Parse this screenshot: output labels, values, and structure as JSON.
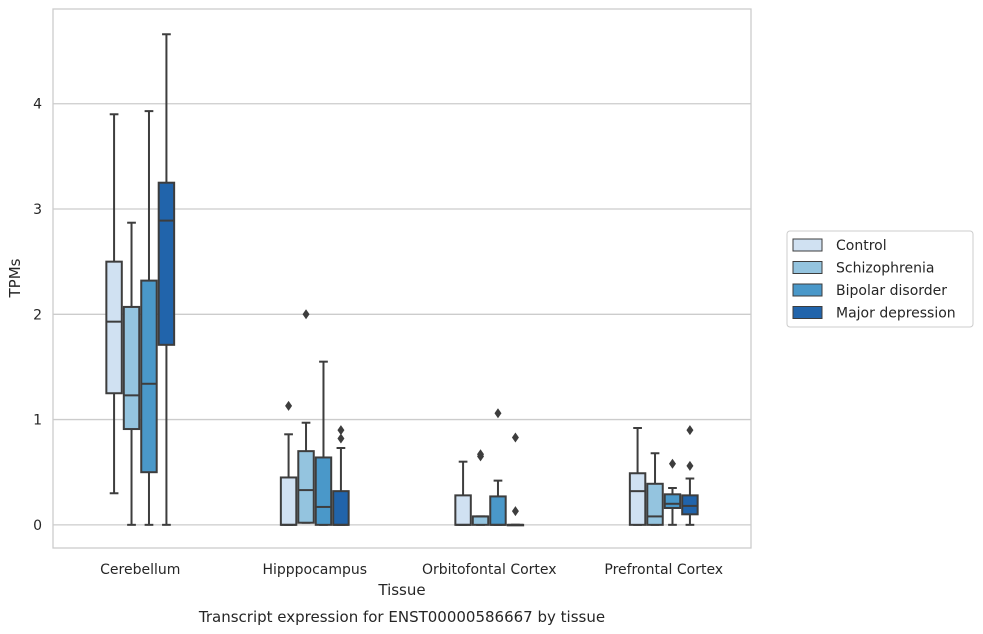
{
  "chart_data": {
    "type": "box",
    "title": "",
    "caption": "Transcript expression for ENST00000586667 by tissue",
    "xlabel": "Tissue",
    "ylabel": "TPMs",
    "ylim": [
      -0.22,
      4.9
    ],
    "yticks": [
      0,
      1,
      2,
      3,
      4
    ],
    "grid": "horizontal",
    "legend_position": "right",
    "categories": [
      "Cerebellum",
      "Hipppocampus",
      "Orbitofontal Cortex",
      "Prefrontal Cortex"
    ],
    "series": [
      {
        "name": "Control",
        "color": "#d0e1f2",
        "boxes": [
          {
            "whisker_low": 0.3,
            "q1": 1.25,
            "median": 1.93,
            "q3": 2.5,
            "whisker_high": 3.9,
            "outliers": []
          },
          {
            "whisker_low": 0.0,
            "q1": 0.0,
            "median": 0.0,
            "q3": 0.45,
            "whisker_high": 0.86,
            "outliers": [
              1.13
            ]
          },
          {
            "whisker_low": 0.0,
            "q1": 0.0,
            "median": 0.0,
            "q3": 0.28,
            "whisker_high": 0.6,
            "outliers": []
          },
          {
            "whisker_low": 0.0,
            "q1": 0.0,
            "median": 0.32,
            "q3": 0.49,
            "whisker_high": 0.92,
            "outliers": []
          }
        ]
      },
      {
        "name": "Schizophrenia",
        "color": "#94c4df",
        "boxes": [
          {
            "whisker_low": 0.0,
            "q1": 0.91,
            "median": 1.23,
            "q3": 2.07,
            "whisker_high": 2.87,
            "outliers": []
          },
          {
            "whisker_low": 0.02,
            "q1": 0.02,
            "median": 0.33,
            "q3": 0.7,
            "whisker_high": 0.97,
            "outliers": [
              2.0
            ]
          },
          {
            "whisker_low": 0.0,
            "q1": 0.0,
            "median": 0.08,
            "q3": 0.08,
            "whisker_high": 0.08,
            "outliers": [
              0.65,
              0.67
            ]
          },
          {
            "whisker_low": 0.0,
            "q1": 0.0,
            "median": 0.08,
            "q3": 0.39,
            "whisker_high": 0.68,
            "outliers": []
          }
        ]
      },
      {
        "name": "Bipolar disorder",
        "color": "#4a98c9",
        "boxes": [
          {
            "whisker_low": 0.0,
            "q1": 0.5,
            "median": 1.34,
            "q3": 2.32,
            "whisker_high": 3.93,
            "outliers": []
          },
          {
            "whisker_low": 0.0,
            "q1": 0.0,
            "median": 0.17,
            "q3": 0.64,
            "whisker_high": 1.55,
            "outliers": []
          },
          {
            "whisker_low": 0.0,
            "q1": 0.0,
            "median": 0.0,
            "q3": 0.27,
            "whisker_high": 0.42,
            "outliers": [
              1.06
            ]
          },
          {
            "whisker_low": 0.0,
            "q1": 0.16,
            "median": 0.2,
            "q3": 0.29,
            "whisker_high": 0.35,
            "outliers": [
              0.58
            ]
          }
        ]
      },
      {
        "name": "Major depression",
        "color": "#2164ab",
        "boxes": [
          {
            "whisker_low": 0.0,
            "q1": 1.71,
            "median": 2.89,
            "q3": 3.25,
            "whisker_high": 4.66,
            "outliers": []
          },
          {
            "whisker_low": 0.0,
            "q1": 0.0,
            "median": 0.0,
            "q3": 0.32,
            "whisker_high": 0.73,
            "outliers": [
              0.82,
              0.9
            ]
          },
          {
            "whisker_low": 0.0,
            "q1": 0.0,
            "median": 0.0,
            "q3": 0.0,
            "whisker_high": 0.0,
            "outliers": [
              0.13,
              0.83
            ]
          },
          {
            "whisker_low": 0.0,
            "q1": 0.1,
            "median": 0.18,
            "q3": 0.28,
            "whisker_high": 0.44,
            "outliers": [
              0.56,
              0.9
            ]
          }
        ]
      }
    ]
  }
}
